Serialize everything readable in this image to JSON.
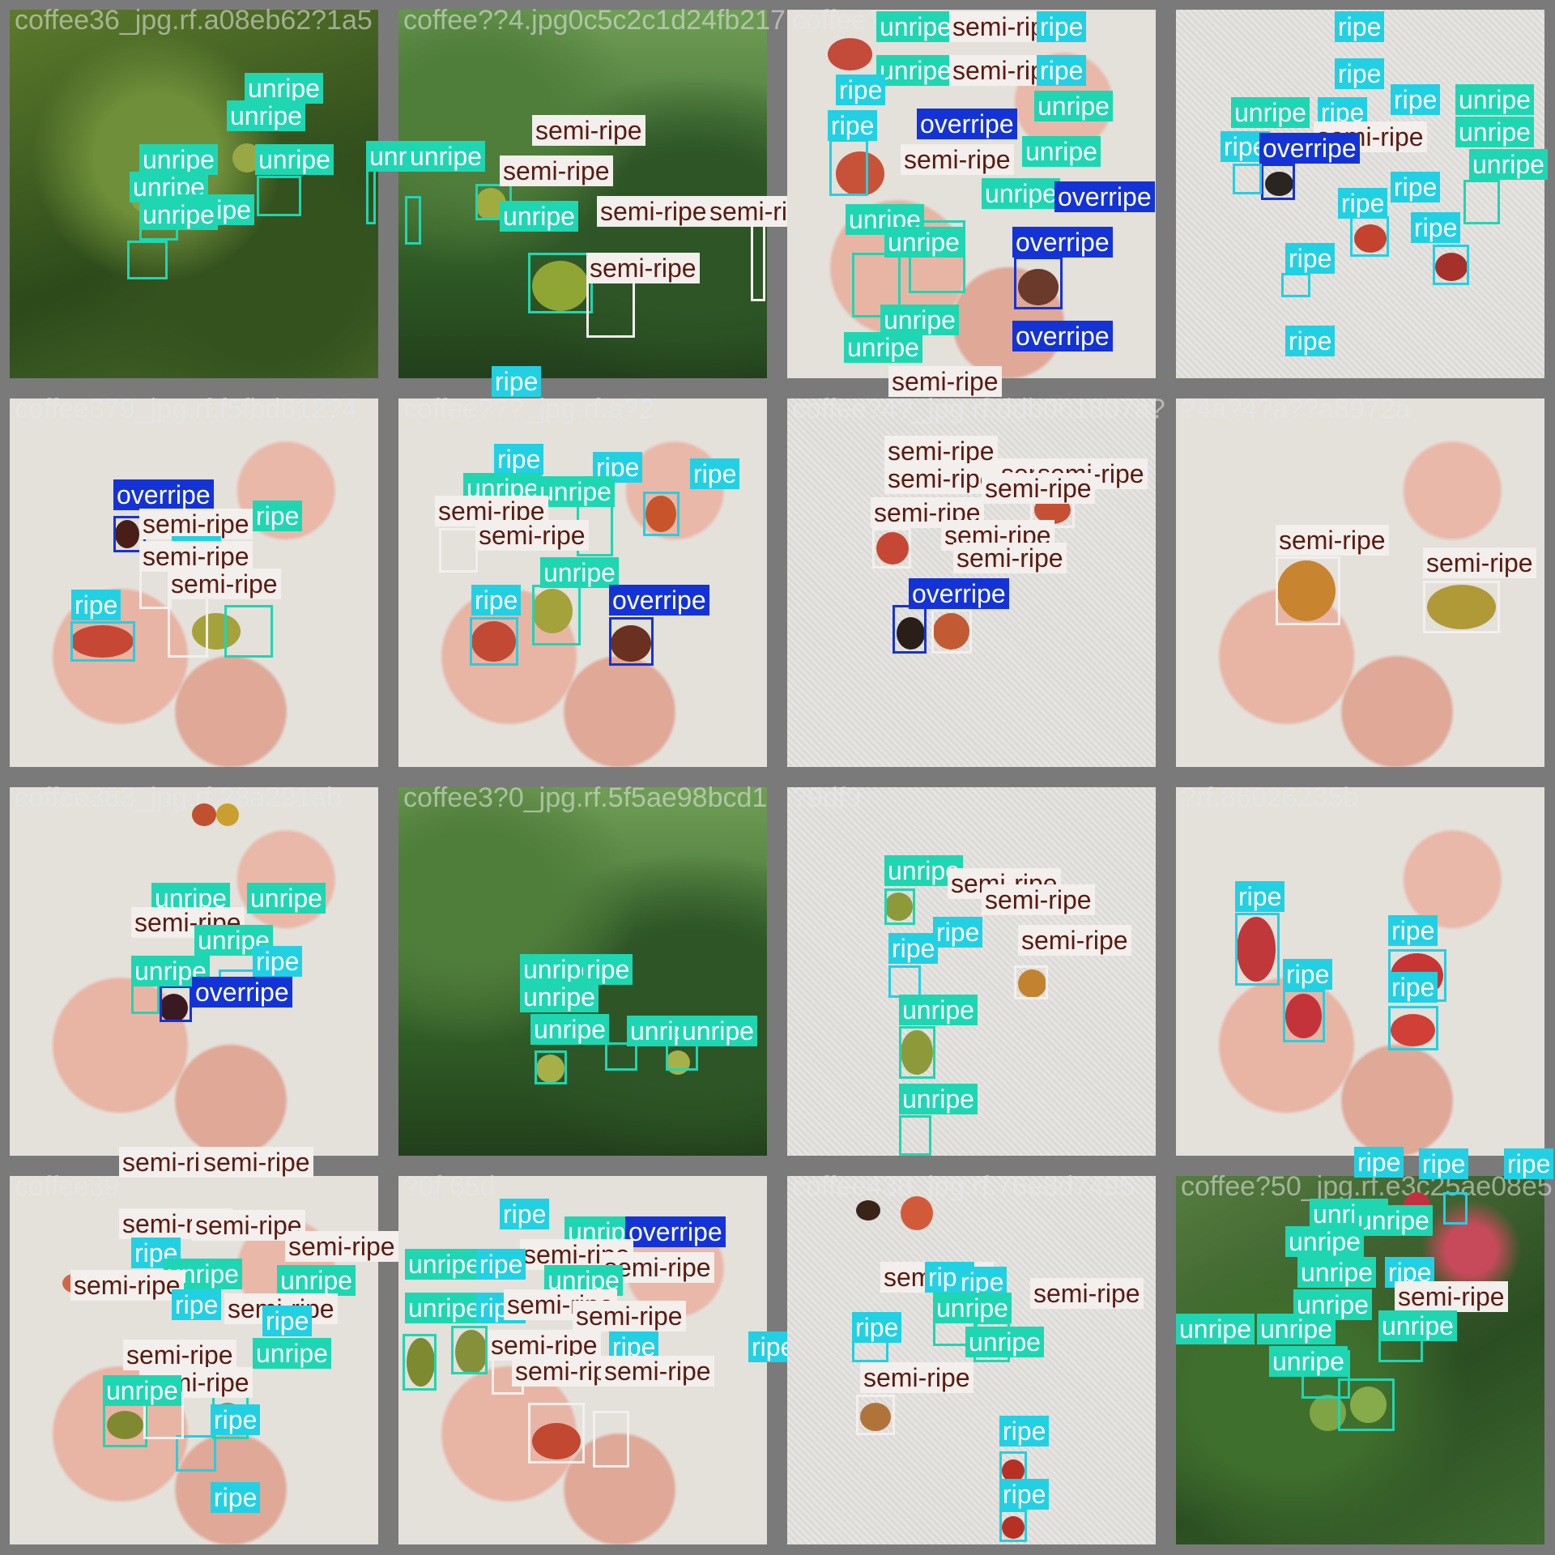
{
  "grid": {
    "tile_titles": [
      "coffee36_jpg.rf.a08eb62?1a5",
      "coffee??4.jpg0c5c2c1d24fb217",
      "coffee?4",
      "",
      "coffee379_jpg.rf.f5fbd612?4",
      "coffee???_jpg.rf.a?2",
      "coffee?4?_jpg.rf.ddb061807a?",
      "?4a?4?a??a8972a",
      "coffee383_jpg.rf.?8a291ab",
      "coffee3?0_jpg.rf.5f5ae98bcd1",
      "?9df9",
      "?rf.86026235b",
      "coffee39",
      "?0f.65d",
      "coffee438_jpg.rf.76e8d7495",
      "coffee?50_jpg.rf.e3c25ae08e5"
    ]
  },
  "classes": {
    "unripe": "unripe",
    "ripe": "ripe",
    "semi": "semi-ripe",
    "over": "overripe"
  },
  "colors": {
    "unripe": "#1fd6b2",
    "ripe": "#22d0e3",
    "semi-ripe": "#f2efec",
    "overripe": "#1433d6"
  }
}
